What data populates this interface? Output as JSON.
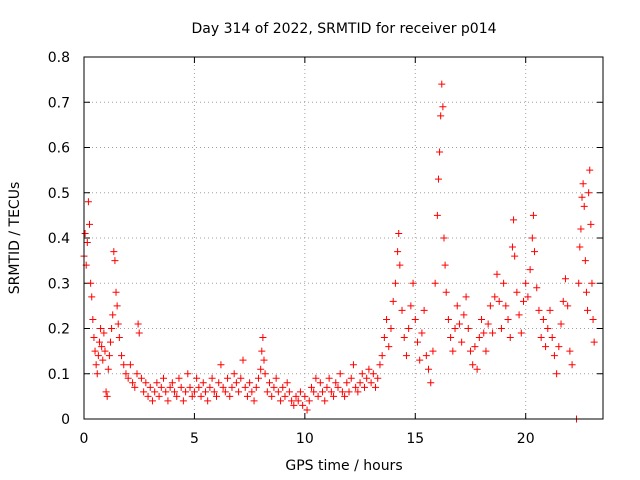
{
  "chart_data": {
    "type": "scatter",
    "title": "Day 314 of 2022, SRMTID for receiver p014",
    "xlabel": "GPS time / hours",
    "ylabel": "SRMTID / TECUs",
    "xlim": [
      0,
      23.5
    ],
    "ylim": [
      0,
      0.8
    ],
    "xticks": [
      0,
      5,
      10,
      15,
      20
    ],
    "xtick_labels": [
      "0",
      "5",
      "10",
      "15",
      "20"
    ],
    "yticks": [
      0,
      0.1,
      0.2,
      0.3,
      0.4,
      0.5,
      0.6,
      0.7,
      0.8
    ],
    "ytick_labels": [
      "0",
      "0.1",
      "0.2",
      "0.3",
      "0.4",
      "0.5",
      "0.6",
      "0.7",
      "0.8"
    ],
    "grid": true,
    "marker": "plus",
    "color": "#ff0000",
    "series": [
      {
        "name": "SRMTID",
        "points": [
          [
            0.0,
            0.36
          ],
          [
            0.05,
            0.41
          ],
          [
            0.1,
            0.34
          ],
          [
            0.15,
            0.39
          ],
          [
            0.2,
            0.48
          ],
          [
            0.25,
            0.43
          ],
          [
            0.3,
            0.3
          ],
          [
            0.35,
            0.27
          ],
          [
            0.4,
            0.22
          ],
          [
            0.45,
            0.18
          ],
          [
            0.5,
            0.15
          ],
          [
            0.55,
            0.12
          ],
          [
            0.6,
            0.1
          ],
          [
            0.65,
            0.14
          ],
          [
            0.7,
            0.17
          ],
          [
            0.75,
            0.2
          ],
          [
            0.8,
            0.16
          ],
          [
            0.85,
            0.13
          ],
          [
            0.9,
            0.19
          ],
          [
            0.95,
            0.15
          ],
          [
            1.0,
            0.06
          ],
          [
            1.05,
            0.05
          ],
          [
            1.1,
            0.11
          ],
          [
            1.15,
            0.14
          ],
          [
            1.2,
            0.17
          ],
          [
            1.25,
            0.2
          ],
          [
            1.3,
            0.23
          ],
          [
            1.35,
            0.37
          ],
          [
            1.4,
            0.35
          ],
          [
            1.45,
            0.28
          ],
          [
            1.5,
            0.25
          ],
          [
            1.55,
            0.21
          ],
          [
            1.6,
            0.18
          ],
          [
            1.7,
            0.14
          ],
          [
            1.8,
            0.12
          ],
          [
            1.9,
            0.1
          ],
          [
            2.0,
            0.09
          ],
          [
            2.1,
            0.12
          ],
          [
            2.2,
            0.08
          ],
          [
            2.3,
            0.07
          ],
          [
            2.4,
            0.1
          ],
          [
            2.45,
            0.21
          ],
          [
            2.5,
            0.19
          ],
          [
            2.6,
            0.09
          ],
          [
            2.7,
            0.06
          ],
          [
            2.8,
            0.08
          ],
          [
            2.9,
            0.05
          ],
          [
            3.0,
            0.07
          ],
          [
            3.1,
            0.04
          ],
          [
            3.2,
            0.06
          ],
          [
            3.3,
            0.08
          ],
          [
            3.4,
            0.05
          ],
          [
            3.5,
            0.07
          ],
          [
            3.6,
            0.09
          ],
          [
            3.7,
            0.06
          ],
          [
            3.8,
            0.04
          ],
          [
            3.9,
            0.07
          ],
          [
            4.0,
            0.08
          ],
          [
            4.1,
            0.06
          ],
          [
            4.2,
            0.05
          ],
          [
            4.3,
            0.09
          ],
          [
            4.4,
            0.07
          ],
          [
            4.5,
            0.04
          ],
          [
            4.6,
            0.06
          ],
          [
            4.7,
            0.1
          ],
          [
            4.8,
            0.07
          ],
          [
            4.9,
            0.05
          ],
          [
            5.0,
            0.06
          ],
          [
            5.1,
            0.09
          ],
          [
            5.2,
            0.07
          ],
          [
            5.3,
            0.05
          ],
          [
            5.4,
            0.08
          ],
          [
            5.5,
            0.06
          ],
          [
            5.6,
            0.04
          ],
          [
            5.7,
            0.07
          ],
          [
            5.8,
            0.09
          ],
          [
            5.9,
            0.06
          ],
          [
            6.0,
            0.05
          ],
          [
            6.1,
            0.08
          ],
          [
            6.2,
            0.12
          ],
          [
            6.3,
            0.07
          ],
          [
            6.4,
            0.06
          ],
          [
            6.5,
            0.09
          ],
          [
            6.6,
            0.05
          ],
          [
            6.7,
            0.07
          ],
          [
            6.8,
            0.1
          ],
          [
            6.9,
            0.08
          ],
          [
            7.0,
            0.06
          ],
          [
            7.1,
            0.09
          ],
          [
            7.2,
            0.13
          ],
          [
            7.3,
            0.07
          ],
          [
            7.4,
            0.05
          ],
          [
            7.5,
            0.08
          ],
          [
            7.6,
            0.06
          ],
          [
            7.7,
            0.04
          ],
          [
            7.8,
            0.07
          ],
          [
            7.9,
            0.09
          ],
          [
            8.0,
            0.11
          ],
          [
            8.05,
            0.15
          ],
          [
            8.1,
            0.18
          ],
          [
            8.15,
            0.13
          ],
          [
            8.2,
            0.1
          ],
          [
            8.3,
            0.06
          ],
          [
            8.4,
            0.08
          ],
          [
            8.5,
            0.05
          ],
          [
            8.6,
            0.07
          ],
          [
            8.7,
            0.09
          ],
          [
            8.8,
            0.06
          ],
          [
            8.9,
            0.04
          ],
          [
            9.0,
            0.07
          ],
          [
            9.1,
            0.05
          ],
          [
            9.2,
            0.08
          ],
          [
            9.3,
            0.06
          ],
          [
            9.4,
            0.04
          ],
          [
            9.5,
            0.03
          ],
          [
            9.6,
            0.05
          ],
          [
            9.7,
            0.04
          ],
          [
            9.8,
            0.06
          ],
          [
            9.9,
            0.03
          ],
          [
            10.0,
            0.05
          ],
          [
            10.1,
            0.02
          ],
          [
            10.2,
            0.04
          ],
          [
            10.3,
            0.07
          ],
          [
            10.4,
            0.06
          ],
          [
            10.5,
            0.09
          ],
          [
            10.6,
            0.05
          ],
          [
            10.7,
            0.08
          ],
          [
            10.8,
            0.06
          ],
          [
            10.9,
            0.04
          ],
          [
            11.0,
            0.07
          ],
          [
            11.1,
            0.09
          ],
          [
            11.2,
            0.06
          ],
          [
            11.3,
            0.05
          ],
          [
            11.4,
            0.08
          ],
          [
            11.5,
            0.07
          ],
          [
            11.6,
            0.1
          ],
          [
            11.7,
            0.06
          ],
          [
            11.8,
            0.05
          ],
          [
            11.9,
            0.08
          ],
          [
            12.0,
            0.06
          ],
          [
            12.1,
            0.09
          ],
          [
            12.2,
            0.12
          ],
          [
            12.3,
            0.07
          ],
          [
            12.4,
            0.06
          ],
          [
            12.5,
            0.08
          ],
          [
            12.6,
            0.1
          ],
          [
            12.7,
            0.07
          ],
          [
            12.8,
            0.09
          ],
          [
            12.9,
            0.11
          ],
          [
            13.0,
            0.08
          ],
          [
            13.1,
            0.1
          ],
          [
            13.2,
            0.07
          ],
          [
            13.3,
            0.09
          ],
          [
            13.4,
            0.12
          ],
          [
            13.5,
            0.14
          ],
          [
            13.6,
            0.18
          ],
          [
            13.7,
            0.22
          ],
          [
            13.8,
            0.16
          ],
          [
            13.9,
            0.2
          ],
          [
            14.0,
            0.26
          ],
          [
            14.1,
            0.3
          ],
          [
            14.2,
            0.37
          ],
          [
            14.25,
            0.41
          ],
          [
            14.3,
            0.34
          ],
          [
            14.4,
            0.24
          ],
          [
            14.5,
            0.18
          ],
          [
            14.6,
            0.14
          ],
          [
            14.7,
            0.2
          ],
          [
            14.8,
            0.25
          ],
          [
            14.9,
            0.3
          ],
          [
            15.0,
            0.22
          ],
          [
            15.1,
            0.17
          ],
          [
            15.2,
            0.13
          ],
          [
            15.3,
            0.19
          ],
          [
            15.4,
            0.24
          ],
          [
            15.5,
            0.14
          ],
          [
            15.6,
            0.11
          ],
          [
            15.7,
            0.08
          ],
          [
            15.8,
            0.15
          ],
          [
            15.9,
            0.3
          ],
          [
            16.0,
            0.45
          ],
          [
            16.05,
            0.53
          ],
          [
            16.1,
            0.59
          ],
          [
            16.15,
            0.67
          ],
          [
            16.2,
            0.74
          ],
          [
            16.25,
            0.69
          ],
          [
            16.3,
            0.4
          ],
          [
            16.35,
            0.34
          ],
          [
            16.4,
            0.28
          ],
          [
            16.5,
            0.22
          ],
          [
            16.6,
            0.18
          ],
          [
            16.7,
            0.15
          ],
          [
            16.8,
            0.2
          ],
          [
            16.9,
            0.25
          ],
          [
            17.0,
            0.21
          ],
          [
            17.1,
            0.17
          ],
          [
            17.2,
            0.23
          ],
          [
            17.3,
            0.27
          ],
          [
            17.4,
            0.2
          ],
          [
            17.5,
            0.15
          ],
          [
            17.6,
            0.12
          ],
          [
            17.7,
            0.16
          ],
          [
            17.8,
            0.11
          ],
          [
            17.9,
            0.18
          ],
          [
            18.0,
            0.22
          ],
          [
            18.1,
            0.19
          ],
          [
            18.2,
            0.15
          ],
          [
            18.3,
            0.21
          ],
          [
            18.4,
            0.25
          ],
          [
            18.5,
            0.19
          ],
          [
            18.6,
            0.27
          ],
          [
            18.7,
            0.32
          ],
          [
            18.8,
            0.26
          ],
          [
            18.9,
            0.2
          ],
          [
            19.0,
            0.3
          ],
          [
            19.1,
            0.25
          ],
          [
            19.2,
            0.22
          ],
          [
            19.3,
            0.18
          ],
          [
            19.4,
            0.38
          ],
          [
            19.45,
            0.44
          ],
          [
            19.5,
            0.36
          ],
          [
            19.6,
            0.28
          ],
          [
            19.7,
            0.23
          ],
          [
            19.8,
            0.19
          ],
          [
            19.9,
            0.26
          ],
          [
            20.0,
            0.3
          ],
          [
            20.1,
            0.27
          ],
          [
            20.2,
            0.33
          ],
          [
            20.3,
            0.4
          ],
          [
            20.35,
            0.45
          ],
          [
            20.4,
            0.37
          ],
          [
            20.5,
            0.29
          ],
          [
            20.6,
            0.24
          ],
          [
            20.7,
            0.18
          ],
          [
            20.8,
            0.22
          ],
          [
            20.9,
            0.16
          ],
          [
            21.0,
            0.2
          ],
          [
            21.1,
            0.24
          ],
          [
            21.2,
            0.18
          ],
          [
            21.3,
            0.14
          ],
          [
            21.4,
            0.1
          ],
          [
            21.5,
            0.16
          ],
          [
            21.6,
            0.21
          ],
          [
            21.7,
            0.26
          ],
          [
            21.8,
            0.31
          ],
          [
            21.9,
            0.25
          ],
          [
            22.0,
            0.15
          ],
          [
            22.1,
            0.12
          ],
          [
            22.3,
            0.0
          ],
          [
            22.4,
            0.3
          ],
          [
            22.45,
            0.38
          ],
          [
            22.5,
            0.42
          ],
          [
            22.55,
            0.49
          ],
          [
            22.6,
            0.52
          ],
          [
            22.65,
            0.47
          ],
          [
            22.7,
            0.35
          ],
          [
            22.75,
            0.28
          ],
          [
            22.8,
            0.24
          ],
          [
            22.85,
            0.5
          ],
          [
            22.9,
            0.55
          ],
          [
            22.95,
            0.43
          ],
          [
            23.0,
            0.3
          ],
          [
            23.05,
            0.22
          ],
          [
            23.1,
            0.17
          ]
        ]
      }
    ]
  }
}
